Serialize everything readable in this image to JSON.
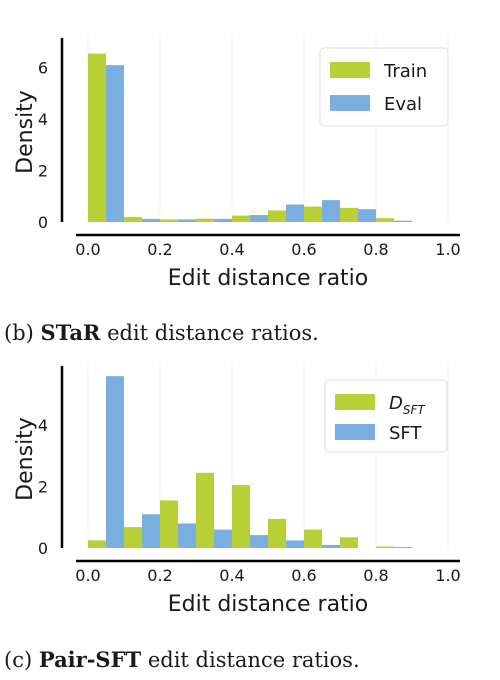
{
  "captions": [
    {
      "prefix": "(b)",
      "bold": "STaR",
      "rest": "edit distance ratios."
    },
    {
      "prefix": "(c)",
      "bold": "Pair-SFT",
      "rest": "edit distance ratios."
    }
  ],
  "colors": {
    "green": "#b8cf35",
    "blue": "#7aaee0",
    "axis": "#000000"
  },
  "chart_data": [
    {
      "type": "bar",
      "xlabel": "Edit distance ratio",
      "ylabel": "Density",
      "xlim": [
        0.0,
        1.0
      ],
      "ylim": [
        0,
        7
      ],
      "xticks": [
        0.0,
        0.2,
        0.4,
        0.6,
        0.8,
        1.0
      ],
      "xtick_labels": [
        "0.0",
        "0.2",
        "0.4",
        "0.6",
        "0.8",
        "1.0"
      ],
      "yticks": [
        0,
        2,
        4,
        6
      ],
      "ytick_labels": [
        "0",
        "2",
        "4",
        "6"
      ],
      "bin_starts": [
        0.0,
        0.1,
        0.2,
        0.3,
        0.4,
        0.5,
        0.6,
        0.7,
        0.8,
        0.9
      ],
      "bin_width": 0.1,
      "legend_position": "top-right",
      "series": [
        {
          "name": "Train",
          "color": "#b8cf35",
          "values": [
            6.55,
            0.2,
            0.1,
            0.13,
            0.25,
            0.45,
            0.6,
            0.55,
            0.15,
            0.0
          ]
        },
        {
          "name": "Eval",
          "color": "#7aaee0",
          "values": [
            6.1,
            0.12,
            0.1,
            0.12,
            0.27,
            0.68,
            0.85,
            0.5,
            0.05,
            0.0
          ]
        }
      ]
    },
    {
      "type": "bar",
      "xlabel": "Edit distance ratio",
      "ylabel": "Density",
      "xlim": [
        0.0,
        1.0
      ],
      "ylim": [
        0,
        5.8
      ],
      "xticks": [
        0.0,
        0.2,
        0.4,
        0.6,
        0.8,
        1.0
      ],
      "xtick_labels": [
        "0.0",
        "0.2",
        "0.4",
        "0.6",
        "0.8",
        "1.0"
      ],
      "yticks": [
        0,
        2,
        4
      ],
      "ytick_labels": [
        "0",
        "2",
        "4"
      ],
      "bin_starts": [
        0.0,
        0.1,
        0.2,
        0.3,
        0.4,
        0.5,
        0.6,
        0.7,
        0.8,
        0.9
      ],
      "bin_width": 0.1,
      "legend_position": "top-right",
      "series": [
        {
          "name": "D_SFT",
          "color": "#b8cf35",
          "values": [
            0.25,
            0.68,
            1.55,
            2.45,
            2.05,
            0.95,
            0.6,
            0.35,
            0.05,
            0.0
          ]
        },
        {
          "name": "SFT",
          "color": "#7aaee0",
          "values": [
            5.6,
            1.1,
            0.8,
            0.6,
            0.42,
            0.25,
            0.1,
            0.0,
            0.03,
            0.0
          ]
        }
      ]
    }
  ]
}
